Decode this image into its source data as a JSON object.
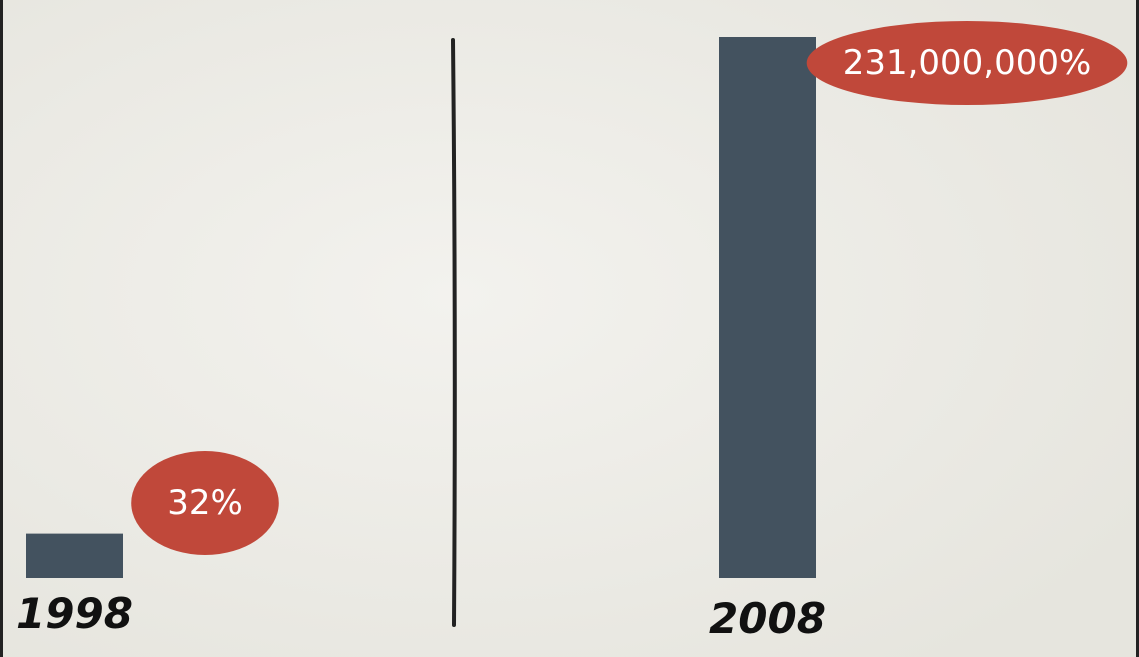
{
  "chart_data": [
    {
      "type": "bar",
      "categories": [
        "1998"
      ],
      "values": [
        32
      ],
      "value_labels": [
        "32%"
      ],
      "color": "#43525f",
      "label_color": "#c0483a",
      "ylim": [
        0,
        390
      ]
    },
    {
      "type": "bar",
      "categories": [
        "2008"
      ],
      "values": [
        231000000
      ],
      "value_labels": [
        "231,000,000%"
      ],
      "color": "#43525f",
      "label_color": "#c0483a",
      "ylim": [
        0,
        231000000
      ]
    }
  ]
}
